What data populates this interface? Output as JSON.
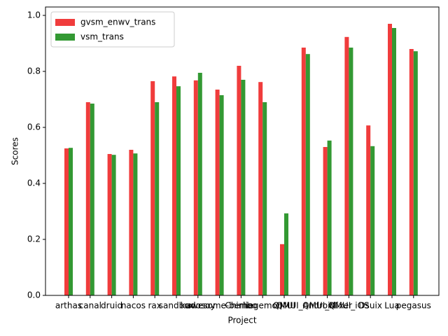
{
  "chart_data": {
    "type": "bar",
    "xlabel": "Project",
    "ylabel": "Scores",
    "categories": [
      "arthas",
      "canal",
      "druid",
      "nacos",
      "rax",
      "sandbox",
      "kudosoy",
      "awesome-berlin",
      "Chimbo",
      "hegemon",
      "QMUI",
      "QMUI_Android",
      "QMUI_Mixer",
      "QMUI_iOS",
      "Dsuix",
      "Lua",
      "pegasus"
    ],
    "series": [
      {
        "name": "gvsm_enwv_trans",
        "color": "#f03c3c",
        "values": [
          0.525,
          0.69,
          0.505,
          0.52,
          0.765,
          0.782,
          0.768,
          0.735,
          0.82,
          0.762,
          0.183,
          0.885,
          0.53,
          0.923,
          0.607,
          0.97,
          0.88
        ]
      },
      {
        "name": "vsm_trans",
        "color": "#339933",
        "values": [
          0.527,
          0.685,
          0.502,
          0.507,
          0.69,
          0.747,
          0.795,
          0.715,
          0.77,
          0.69,
          0.293,
          0.862,
          0.553,
          0.885,
          0.533,
          0.955,
          0.872
        ]
      }
    ],
    "ylim": [
      0,
      1.03
    ],
    "yticks": [
      {
        "value": 0,
        "label": "0.0"
      },
      {
        "value": 0.2,
        "label": "0.2"
      },
      {
        "value": 0.4,
        "label": "0.4"
      },
      {
        "value": 0.6,
        "label": "0.6"
      },
      {
        "value": 0.8,
        "label": "0.8"
      },
      {
        "value": 1.0,
        "label": "1.0"
      }
    ],
    "grid": false,
    "legend": "upper left"
  }
}
